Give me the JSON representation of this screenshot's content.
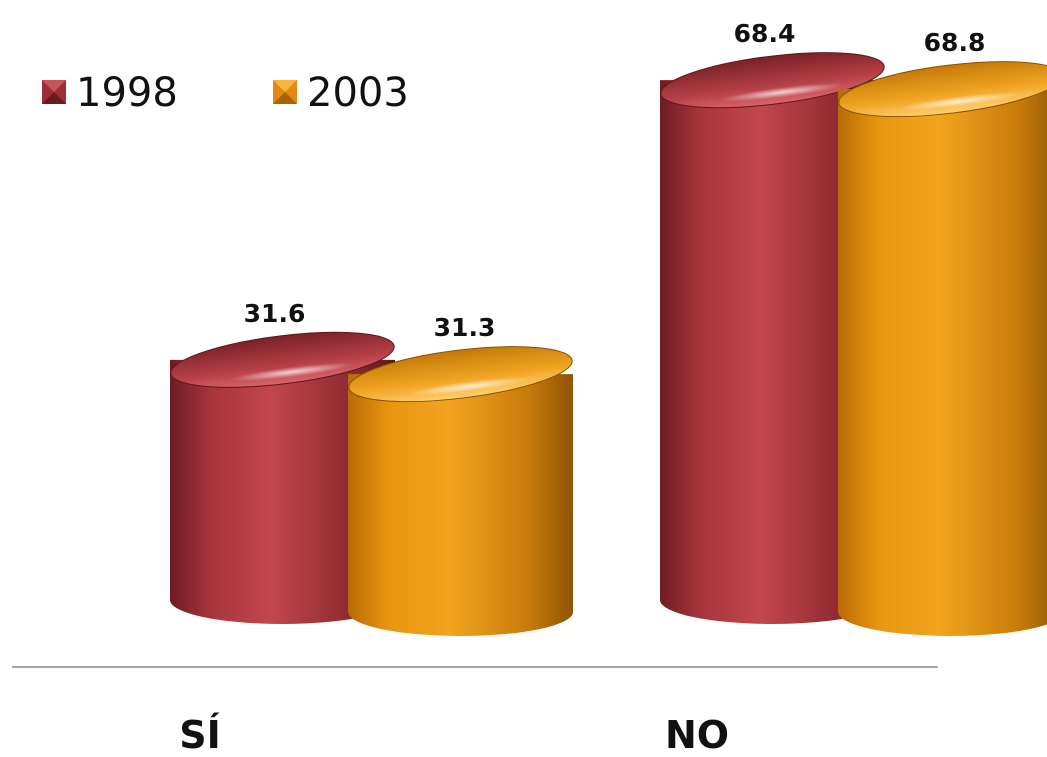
{
  "chart_data": {
    "type": "bar",
    "categories": [
      "SÍ",
      "NO"
    ],
    "series": [
      {
        "name": "1998",
        "values": [
          31.6,
          68.4
        ],
        "color": "#9e2e35"
      },
      {
        "name": "2003",
        "values": [
          31.3,
          68.8
        ],
        "color": "#e08a12"
      }
    ],
    "title": "",
    "xlabel": "",
    "ylabel": "",
    "ylim": [
      0,
      70
    ],
    "legend": "top-left",
    "grid": false,
    "style": "3d-cylinder"
  }
}
